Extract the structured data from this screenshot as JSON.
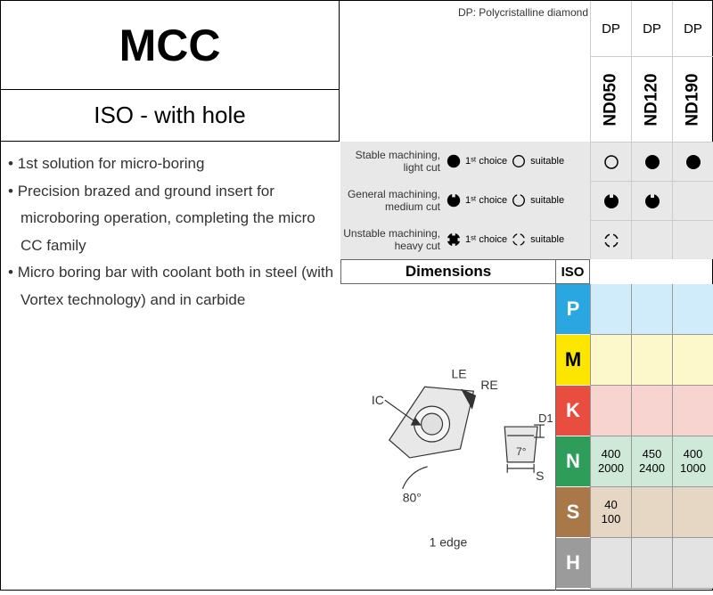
{
  "title": "MCC",
  "subtitle": "ISO - with hole",
  "dp_note": "DP: Polycristalline diamond",
  "bullets": [
    "1st solution for micro-boring",
    "Precision brazed and ground insert for microboring operation, completing the micro CC family",
    "Micro boring bar with coolant both in steel (with Vortex technology) and in carbide"
  ],
  "grades": {
    "header": "DP",
    "codes": [
      "ND050",
      "ND120",
      "ND190"
    ]
  },
  "machining": {
    "rows": [
      {
        "label1": "Stable machining,",
        "label2": "light cut",
        "choice": "1",
        "suit": "suitable"
      },
      {
        "label1": "General machining,",
        "label2": "medium cut",
        "choice": "1",
        "suit": "suitable"
      },
      {
        "label1": "Unstable machining,",
        "label2": "heavy cut",
        "choice": "1",
        "suit": "suitable"
      }
    ],
    "first_choice": "1ˢᵗ choice",
    "suitable": "suitable",
    "grid": [
      [
        "open-circle",
        "filled-circle",
        "filled-circle"
      ],
      [
        "filled-notch",
        "filled-notch",
        ""
      ],
      [
        "open-cross",
        "",
        ""
      ]
    ]
  },
  "dimensions_header": "Dimensions",
  "iso_header": "ISO",
  "diagram_labels": {
    "LE": "LE",
    "RE": "RE",
    "IC": "IC",
    "D1": "D1",
    "angle7": "7°",
    "S": "S",
    "angle80": "80°",
    "edge": "1 edge"
  },
  "iso_rows": [
    {
      "letter": "P",
      "bg": "#2aa7e0",
      "cell_bg": "#d0ecfa",
      "data": [
        "",
        "",
        ""
      ]
    },
    {
      "letter": "M",
      "bg": "#fce600",
      "cell_bg": "#fdf8cc",
      "data": [
        "",
        "",
        ""
      ],
      "letter_color": "#000"
    },
    {
      "letter": "K",
      "bg": "#e84d3f",
      "cell_bg": "#f8d4d0",
      "data": [
        "",
        "",
        ""
      ]
    },
    {
      "letter": "N",
      "bg": "#2e9d5a",
      "cell_bg": "#cfe9d8",
      "data": [
        "400\n2000",
        "450\n2400",
        "400\n1000"
      ]
    },
    {
      "letter": "S",
      "bg": "#a87848",
      "cell_bg": "#e6d6c4",
      "data": [
        "40\n100",
        "",
        ""
      ]
    },
    {
      "letter": "H",
      "bg": "#9b9b9b",
      "cell_bg": "#e3e3e3",
      "data": [
        "",
        "",
        ""
      ]
    }
  ]
}
